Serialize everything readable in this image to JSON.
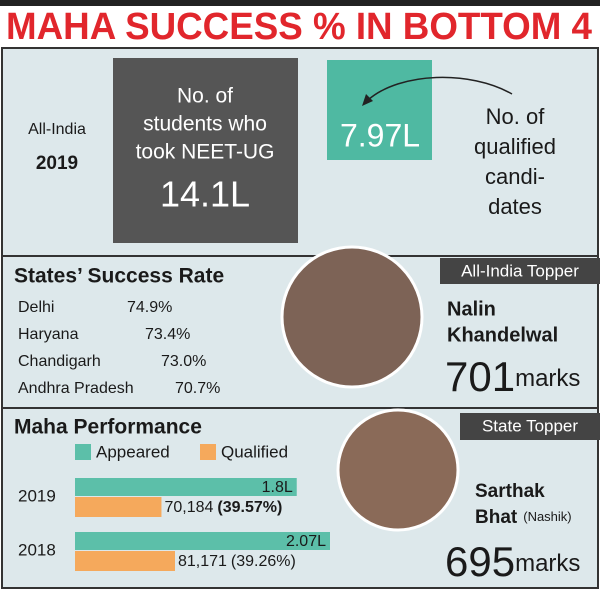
{
  "title": "MAHA SUCCESS % IN BOTTOM 4",
  "all_india": {
    "label": "All-India",
    "year": "2019",
    "took_lines": [
      "No. of",
      "students who",
      "took NEET-UG"
    ],
    "took_value": "14.1L",
    "qualified_value": "7.97L",
    "qualified_lines": [
      "No. of",
      "qualified",
      "candi-",
      "dates"
    ]
  },
  "states": {
    "title": "States’ Success Rate",
    "rows": [
      {
        "name": "Delhi",
        "rate": "74.9%"
      },
      {
        "name": "Haryana",
        "rate": "73.4%"
      },
      {
        "name": "Chandigarh",
        "rate": "73.0%"
      },
      {
        "name": "Andhra Pradesh",
        "rate": "70.7%"
      }
    ]
  },
  "all_india_topper": {
    "badge": "All-India Topper",
    "name_lines": [
      "Nalin",
      "Khandelwal"
    ],
    "score": "701",
    "unit": "marks"
  },
  "maha": {
    "title": "Maha Performance",
    "legend": {
      "appeared": "Appeared",
      "qualified": "Qualified"
    },
    "colors": {
      "appeared": "#5cbfa9",
      "qualified": "#f5a95c"
    },
    "rows": [
      {
        "year": "2019",
        "appeared": 180000,
        "appeared_label": "1.8L",
        "qualified": 70184,
        "qualified_label": "70,184",
        "share_label": "(39.57%)"
      },
      {
        "year": "2018",
        "appeared": 207000,
        "appeared_label": "2.07L",
        "qualified": 81171,
        "qualified_label": "81,171",
        "share_label": "(39.26%)"
      }
    ]
  },
  "state_topper": {
    "badge": "State Topper",
    "name_lines": [
      "Sarthak",
      "Bhat"
    ],
    "place": "(Nashik)",
    "score": "695",
    "unit": "marks"
  }
}
